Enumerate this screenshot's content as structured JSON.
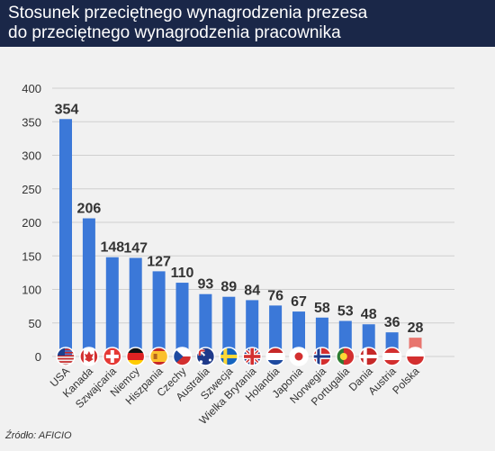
{
  "header": {
    "title_line1": "Stosunek przeciętnego wynagrodzenia prezesa",
    "title_line2": "do przeciętnego wynagrodzenia pracownika"
  },
  "footer": {
    "source": "Źródło: AFICIO"
  },
  "colors": {
    "header_bg": "#1a2748",
    "bar": "#3b78d8",
    "bar_highlight": "#e8756e",
    "grid": "#cfcfcf"
  },
  "chart_data": {
    "type": "bar",
    "title": "Stosunek przeciętnego wynagrodzenia prezesa do przeciętnego wynagrodzenia pracownika",
    "xlabel": "",
    "ylabel": "",
    "ylim": [
      0,
      400
    ],
    "yticks": [
      0,
      50,
      100,
      150,
      200,
      250,
      300,
      350,
      400
    ],
    "grid": true,
    "highlight_category": "Polska",
    "categories": [
      "USA",
      "Kanada",
      "Szwajcaria",
      "Niemcy",
      "Hiszpania",
      "Czechy",
      "Australia",
      "Szwecja",
      "Wielka Brytania",
      "Holandia",
      "Japonia",
      "Norwegia",
      "Portugalia",
      "Dania",
      "Austria",
      "Polska"
    ],
    "values": [
      354,
      206,
      148,
      147,
      127,
      110,
      93,
      89,
      84,
      76,
      67,
      58,
      53,
      48,
      36,
      28
    ],
    "flags": [
      "us-flag-icon",
      "ca-flag-icon",
      "ch-flag-icon",
      "de-flag-icon",
      "es-flag-icon",
      "cz-flag-icon",
      "au-flag-icon",
      "se-flag-icon",
      "gb-flag-icon",
      "nl-flag-icon",
      "jp-flag-icon",
      "no-flag-icon",
      "pt-flag-icon",
      "dk-flag-icon",
      "at-flag-icon",
      "pl-flag-icon"
    ]
  }
}
